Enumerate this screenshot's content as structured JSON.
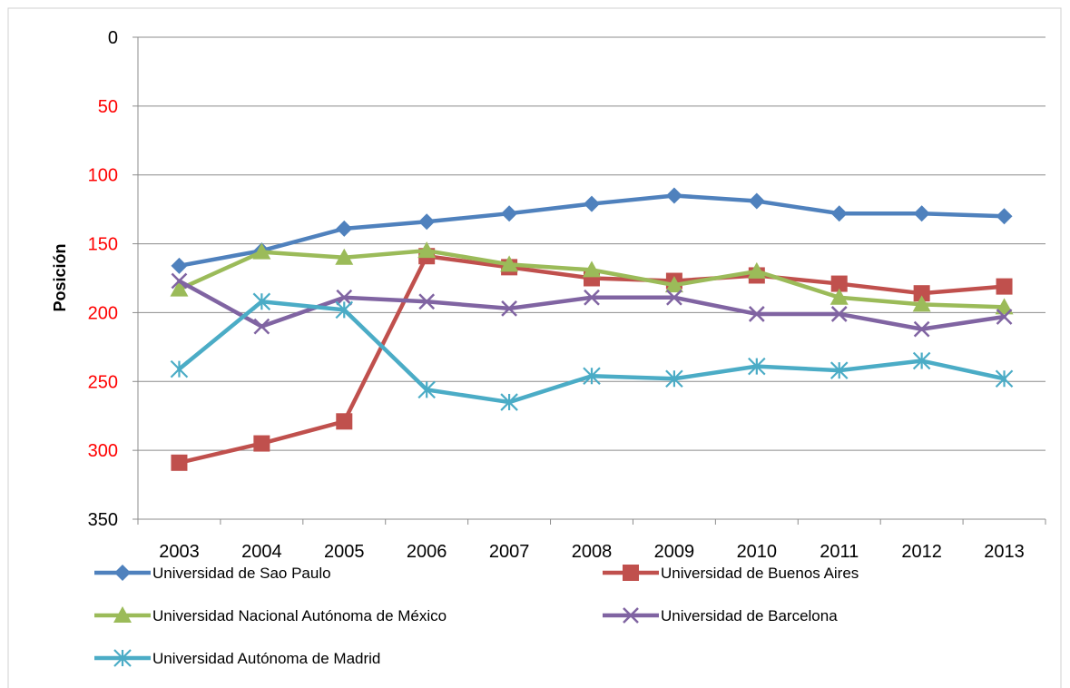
{
  "chart_data": {
    "type": "line",
    "title": "",
    "xlabel": "",
    "ylabel": "Posición",
    "ylim": [
      0,
      350
    ],
    "y_reversed": true,
    "y_ticks": [
      "0",
      "50",
      "100",
      "150",
      "200",
      "250",
      "300",
      "350"
    ],
    "grid": "horizontal",
    "legend_position": "bottom",
    "categories": [
      "2003",
      "2004",
      "2005",
      "2006",
      "2007",
      "2008",
      "2009",
      "2010",
      "2011",
      "2012",
      "2013"
    ],
    "series": [
      {
        "name": "Universidad de Sao Paulo",
        "color": "#4F81BD",
        "marker": "diamond",
        "values": [
          166,
          155,
          139,
          134,
          128,
          121,
          115,
          119,
          128,
          128,
          130
        ]
      },
      {
        "name": "Universidad de Buenos Aires",
        "color": "#C0504D",
        "marker": "square",
        "values": [
          309,
          295,
          279,
          159,
          167,
          175,
          177,
          173,
          179,
          186,
          181
        ]
      },
      {
        "name": "Universidad Nacional Autónoma de México",
        "color": "#9BBB59",
        "marker": "triangle",
        "values": [
          183,
          156,
          160,
          155,
          165,
          169,
          180,
          170,
          189,
          194,
          196
        ]
      },
      {
        "name": "Universidad de Barcelona",
        "color": "#8064A2",
        "marker": "x",
        "values": [
          177,
          210,
          189,
          192,
          197,
          189,
          189,
          201,
          201,
          212,
          203
        ]
      },
      {
        "name": "Universidad Autónoma de Madrid",
        "color": "#4BACC6",
        "marker": "asterisk",
        "values": [
          241,
          192,
          198,
          256,
          265,
          246,
          248,
          239,
          242,
          235,
          248
        ]
      }
    ]
  }
}
